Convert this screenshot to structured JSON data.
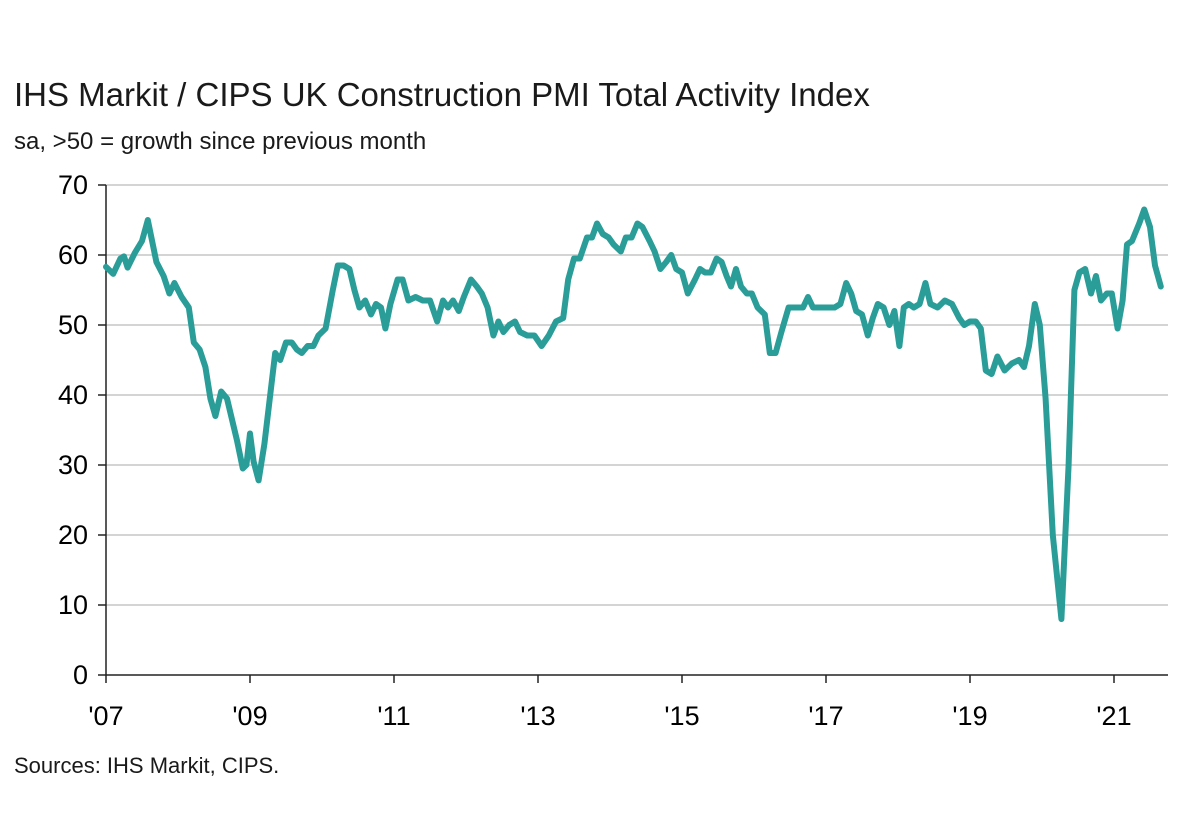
{
  "chart": {
    "title": "IHS Markit / CIPS UK Construction PMI Total Activity Index",
    "subtitle": "sa, >50 = growth since previous month",
    "source": "Sources: IHS Markit, CIPS."
  },
  "chart_data": {
    "type": "line",
    "title": "IHS Markit / CIPS UK Construction PMI Total Activity Index",
    "subtitle": "sa, >50 = growth since previous month",
    "xlabel": "",
    "ylabel": "",
    "ylim": [
      0,
      70
    ],
    "yticks": [
      0,
      10,
      20,
      30,
      40,
      50,
      60,
      70
    ],
    "xlim": [
      2007.0,
      2021.75
    ],
    "xticks": [
      {
        "value": 2007,
        "label": "'07"
      },
      {
        "value": 2009,
        "label": "'09"
      },
      {
        "value": 2011,
        "label": "'11"
      },
      {
        "value": 2013,
        "label": "'13"
      },
      {
        "value": 2015,
        "label": "'15"
      },
      {
        "value": 2017,
        "label": "'17"
      },
      {
        "value": 2019,
        "label": "'19"
      },
      {
        "value": 2021,
        "label": "'21"
      }
    ],
    "grid": "horizontal",
    "series_color": "#2a9d99",
    "series": [
      {
        "points": [
          [
            2007.0,
            58.3
          ],
          [
            2007.1,
            57.3
          ],
          [
            2007.2,
            59.5
          ],
          [
            2007.25,
            59.8
          ],
          [
            2007.3,
            58.2
          ],
          [
            2007.4,
            60.3
          ],
          [
            2007.5,
            62.0
          ],
          [
            2007.58,
            65.0
          ],
          [
            2007.7,
            59.0
          ],
          [
            2007.8,
            57.0
          ],
          [
            2007.88,
            54.5
          ],
          [
            2007.95,
            56.0
          ],
          [
            2008.05,
            54.0
          ],
          [
            2008.15,
            52.5
          ],
          [
            2008.22,
            47.5
          ],
          [
            2008.3,
            46.5
          ],
          [
            2008.38,
            44.0
          ],
          [
            2008.45,
            39.5
          ],
          [
            2008.52,
            37.0
          ],
          [
            2008.6,
            40.5
          ],
          [
            2008.68,
            39.5
          ],
          [
            2008.75,
            36.5
          ],
          [
            2008.82,
            33.5
          ],
          [
            2008.9,
            29.5
          ],
          [
            2008.95,
            30.0
          ],
          [
            2009.0,
            34.5
          ],
          [
            2009.05,
            30.5
          ],
          [
            2009.12,
            27.8
          ],
          [
            2009.2,
            33.0
          ],
          [
            2009.28,
            40.0
          ],
          [
            2009.35,
            46.0
          ],
          [
            2009.42,
            45.0
          ],
          [
            2009.5,
            47.5
          ],
          [
            2009.58,
            47.5
          ],
          [
            2009.65,
            46.5
          ],
          [
            2009.72,
            46.0
          ],
          [
            2009.8,
            47.0
          ],
          [
            2009.88,
            47.0
          ],
          [
            2009.95,
            48.5
          ],
          [
            2010.05,
            49.5
          ],
          [
            2010.15,
            55.0
          ],
          [
            2010.22,
            58.5
          ],
          [
            2010.3,
            58.5
          ],
          [
            2010.38,
            58.0
          ],
          [
            2010.45,
            55.0
          ],
          [
            2010.52,
            52.5
          ],
          [
            2010.6,
            53.5
          ],
          [
            2010.68,
            51.5
          ],
          [
            2010.75,
            53.0
          ],
          [
            2010.82,
            52.5
          ],
          [
            2010.88,
            49.5
          ],
          [
            2010.95,
            53.0
          ],
          [
            2011.05,
            56.5
          ],
          [
            2011.12,
            56.5
          ],
          [
            2011.2,
            53.5
          ],
          [
            2011.3,
            54.0
          ],
          [
            2011.4,
            53.5
          ],
          [
            2011.5,
            53.5
          ],
          [
            2011.6,
            50.5
          ],
          [
            2011.68,
            53.5
          ],
          [
            2011.75,
            52.5
          ],
          [
            2011.82,
            53.5
          ],
          [
            2011.9,
            52.0
          ],
          [
            2011.97,
            54.0
          ],
          [
            2012.07,
            56.5
          ],
          [
            2012.15,
            55.5
          ],
          [
            2012.22,
            54.5
          ],
          [
            2012.3,
            52.5
          ],
          [
            2012.38,
            48.5
          ],
          [
            2012.45,
            50.5
          ],
          [
            2012.52,
            49.0
          ],
          [
            2012.6,
            50.0
          ],
          [
            2012.68,
            50.5
          ],
          [
            2012.75,
            49.0
          ],
          [
            2012.85,
            48.5
          ],
          [
            2012.95,
            48.5
          ],
          [
            2013.05,
            47.0
          ],
          [
            2013.15,
            48.5
          ],
          [
            2013.25,
            50.5
          ],
          [
            2013.35,
            51.0
          ],
          [
            2013.42,
            56.5
          ],
          [
            2013.5,
            59.5
          ],
          [
            2013.58,
            59.5
          ],
          [
            2013.68,
            62.5
          ],
          [
            2013.75,
            62.5
          ],
          [
            2013.82,
            64.5
          ],
          [
            2013.9,
            63.0
          ],
          [
            2013.98,
            62.5
          ],
          [
            2014.05,
            61.5
          ],
          [
            2014.15,
            60.5
          ],
          [
            2014.22,
            62.5
          ],
          [
            2014.3,
            62.5
          ],
          [
            2014.38,
            64.5
          ],
          [
            2014.45,
            64.0
          ],
          [
            2014.55,
            62.0
          ],
          [
            2014.62,
            60.5
          ],
          [
            2014.7,
            58.0
          ],
          [
            2014.78,
            59.0
          ],
          [
            2014.85,
            60.0
          ],
          [
            2014.92,
            58.0
          ],
          [
            2015.0,
            57.5
          ],
          [
            2015.08,
            54.5
          ],
          [
            2015.18,
            56.5
          ],
          [
            2015.25,
            58.0
          ],
          [
            2015.32,
            57.5
          ],
          [
            2015.4,
            57.5
          ],
          [
            2015.48,
            59.5
          ],
          [
            2015.55,
            59.0
          ],
          [
            2015.62,
            57.0
          ],
          [
            2015.68,
            55.5
          ],
          [
            2015.75,
            58.0
          ],
          [
            2015.82,
            55.5
          ],
          [
            2015.9,
            54.5
          ],
          [
            2015.97,
            54.5
          ],
          [
            2016.05,
            52.5
          ],
          [
            2016.15,
            51.5
          ],
          [
            2016.22,
            46.0
          ],
          [
            2016.3,
            46.0
          ],
          [
            2016.38,
            49.0
          ],
          [
            2016.48,
            52.5
          ],
          [
            2016.58,
            52.5
          ],
          [
            2016.68,
            52.5
          ],
          [
            2016.75,
            54.0
          ],
          [
            2016.82,
            52.5
          ],
          [
            2016.9,
            52.5
          ],
          [
            2016.97,
            52.5
          ],
          [
            2017.05,
            52.5
          ],
          [
            2017.12,
            52.5
          ],
          [
            2017.2,
            53.0
          ],
          [
            2017.28,
            56.0
          ],
          [
            2017.35,
            54.5
          ],
          [
            2017.42,
            52.0
          ],
          [
            2017.5,
            51.5
          ],
          [
            2017.58,
            48.5
          ],
          [
            2017.65,
            51.0
          ],
          [
            2017.72,
            53.0
          ],
          [
            2017.8,
            52.5
          ],
          [
            2017.88,
            50.0
          ],
          [
            2017.95,
            52.0
          ],
          [
            2018.02,
            47.0
          ],
          [
            2018.08,
            52.5
          ],
          [
            2018.15,
            53.0
          ],
          [
            2018.22,
            52.5
          ],
          [
            2018.3,
            53.0
          ],
          [
            2018.38,
            56.0
          ],
          [
            2018.45,
            53.0
          ],
          [
            2018.55,
            52.5
          ],
          [
            2018.65,
            53.5
          ],
          [
            2018.75,
            53.0
          ],
          [
            2018.85,
            51.0
          ],
          [
            2018.92,
            50.0
          ],
          [
            2019.0,
            50.5
          ],
          [
            2019.08,
            50.5
          ],
          [
            2019.15,
            49.5
          ],
          [
            2019.22,
            43.5
          ],
          [
            2019.3,
            43.0
          ],
          [
            2019.38,
            45.5
          ],
          [
            2019.48,
            43.5
          ],
          [
            2019.58,
            44.5
          ],
          [
            2019.68,
            45.0
          ],
          [
            2019.75,
            44.0
          ],
          [
            2019.82,
            47.0
          ],
          [
            2019.9,
            53.0
          ],
          [
            2019.97,
            50.0
          ],
          [
            2020.05,
            39.5
          ],
          [
            2020.15,
            20.0
          ],
          [
            2020.27,
            8.0
          ],
          [
            2020.37,
            30.0
          ],
          [
            2020.45,
            55.0
          ],
          [
            2020.52,
            57.5
          ],
          [
            2020.6,
            58.0
          ],
          [
            2020.68,
            54.5
          ],
          [
            2020.75,
            57.0
          ],
          [
            2020.82,
            53.5
          ],
          [
            2020.9,
            54.5
          ],
          [
            2020.97,
            54.5
          ],
          [
            2021.05,
            49.5
          ],
          [
            2021.12,
            53.5
          ],
          [
            2021.18,
            61.5
          ],
          [
            2021.25,
            62.0
          ],
          [
            2021.35,
            64.5
          ],
          [
            2021.42,
            66.5
          ],
          [
            2021.5,
            64.0
          ],
          [
            2021.57,
            58.5
          ],
          [
            2021.65,
            55.5
          ]
        ]
      }
    ]
  }
}
